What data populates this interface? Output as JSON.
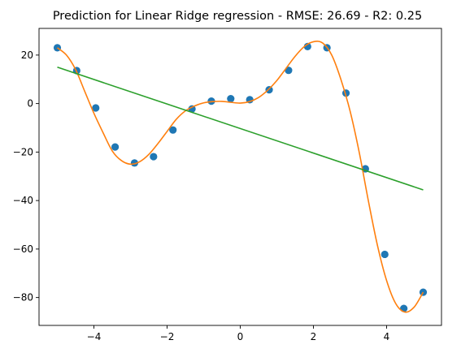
{
  "chart_data": {
    "type": "scatter",
    "title": "Prediction for Linear Ridge regression - RMSE: 26.69 - R2: 0.25",
    "xlabel": "",
    "ylabel": "",
    "xlim": [
      -5.5,
      5.5
    ],
    "ylim": [
      -91.5,
      31
    ],
    "grid": false,
    "x_ticks": [
      -4,
      -2,
      0,
      2,
      4
    ],
    "x_tick_labels": [
      "−4",
      "−2",
      "0",
      "2",
      "4"
    ],
    "y_ticks": [
      -80,
      -60,
      -40,
      -20,
      0,
      20
    ],
    "y_tick_labels": [
      "−80",
      "−60",
      "−40",
      "−20",
      "0",
      "20"
    ],
    "series": [
      {
        "kind": "scatter",
        "color": "#1f77b4",
        "x": [
          -5.0,
          -4.47,
          -3.95,
          -3.42,
          -2.89,
          -2.37,
          -1.84,
          -1.32,
          -0.79,
          -0.26,
          0.26,
          0.79,
          1.32,
          1.84,
          2.37,
          2.89,
          3.42,
          3.95,
          4.47,
          5.0
        ],
        "y": [
          23,
          13.6,
          -1.8,
          -17.9,
          -24.5,
          -21.9,
          -10.9,
          -2.2,
          1.0,
          2.0,
          1.6,
          5.7,
          13.7,
          23.5,
          23.0,
          4.3,
          -26.9,
          -62.2,
          -84.5,
          -77.8
        ]
      },
      {
        "kind": "line",
        "color": "#ff7f0e",
        "x": [
          -5.0,
          -4.75,
          -4.5,
          -4.25,
          -4.0,
          -3.75,
          -3.5,
          -3.25,
          -3.0,
          -2.75,
          -2.5,
          -2.25,
          -2.0,
          -1.75,
          -1.5,
          -1.25,
          -1.0,
          -0.75,
          -0.5,
          -0.25,
          0.0,
          0.25,
          0.5,
          0.75,
          1.0,
          1.25,
          1.5,
          1.75,
          2.0,
          2.25,
          2.5,
          2.75,
          3.0,
          3.25,
          3.5,
          3.75,
          4.0,
          4.25,
          4.5,
          4.75,
          5.0
        ],
        "y": [
          23.0,
          20.0,
          14.0,
          5.0,
          -4.0,
          -12.0,
          -19.5,
          -23.5,
          -25.0,
          -24.0,
          -21.0,
          -16.5,
          -11.5,
          -6.5,
          -3.0,
          -1.0,
          0.3,
          0.8,
          0.9,
          0.5,
          0.2,
          0.8,
          2.5,
          5.5,
          9.5,
          14.5,
          19.5,
          23.5,
          25.5,
          25.0,
          20.0,
          10.0,
          -3.0,
          -20.0,
          -40.0,
          -58.5,
          -73.0,
          -82.5,
          -86.0,
          -84.0,
          -77.8
        ]
      },
      {
        "kind": "line",
        "color": "#2ca02c",
        "x": [
          -5.0,
          5.0
        ],
        "y": [
          15.0,
          -35.6
        ]
      }
    ]
  }
}
